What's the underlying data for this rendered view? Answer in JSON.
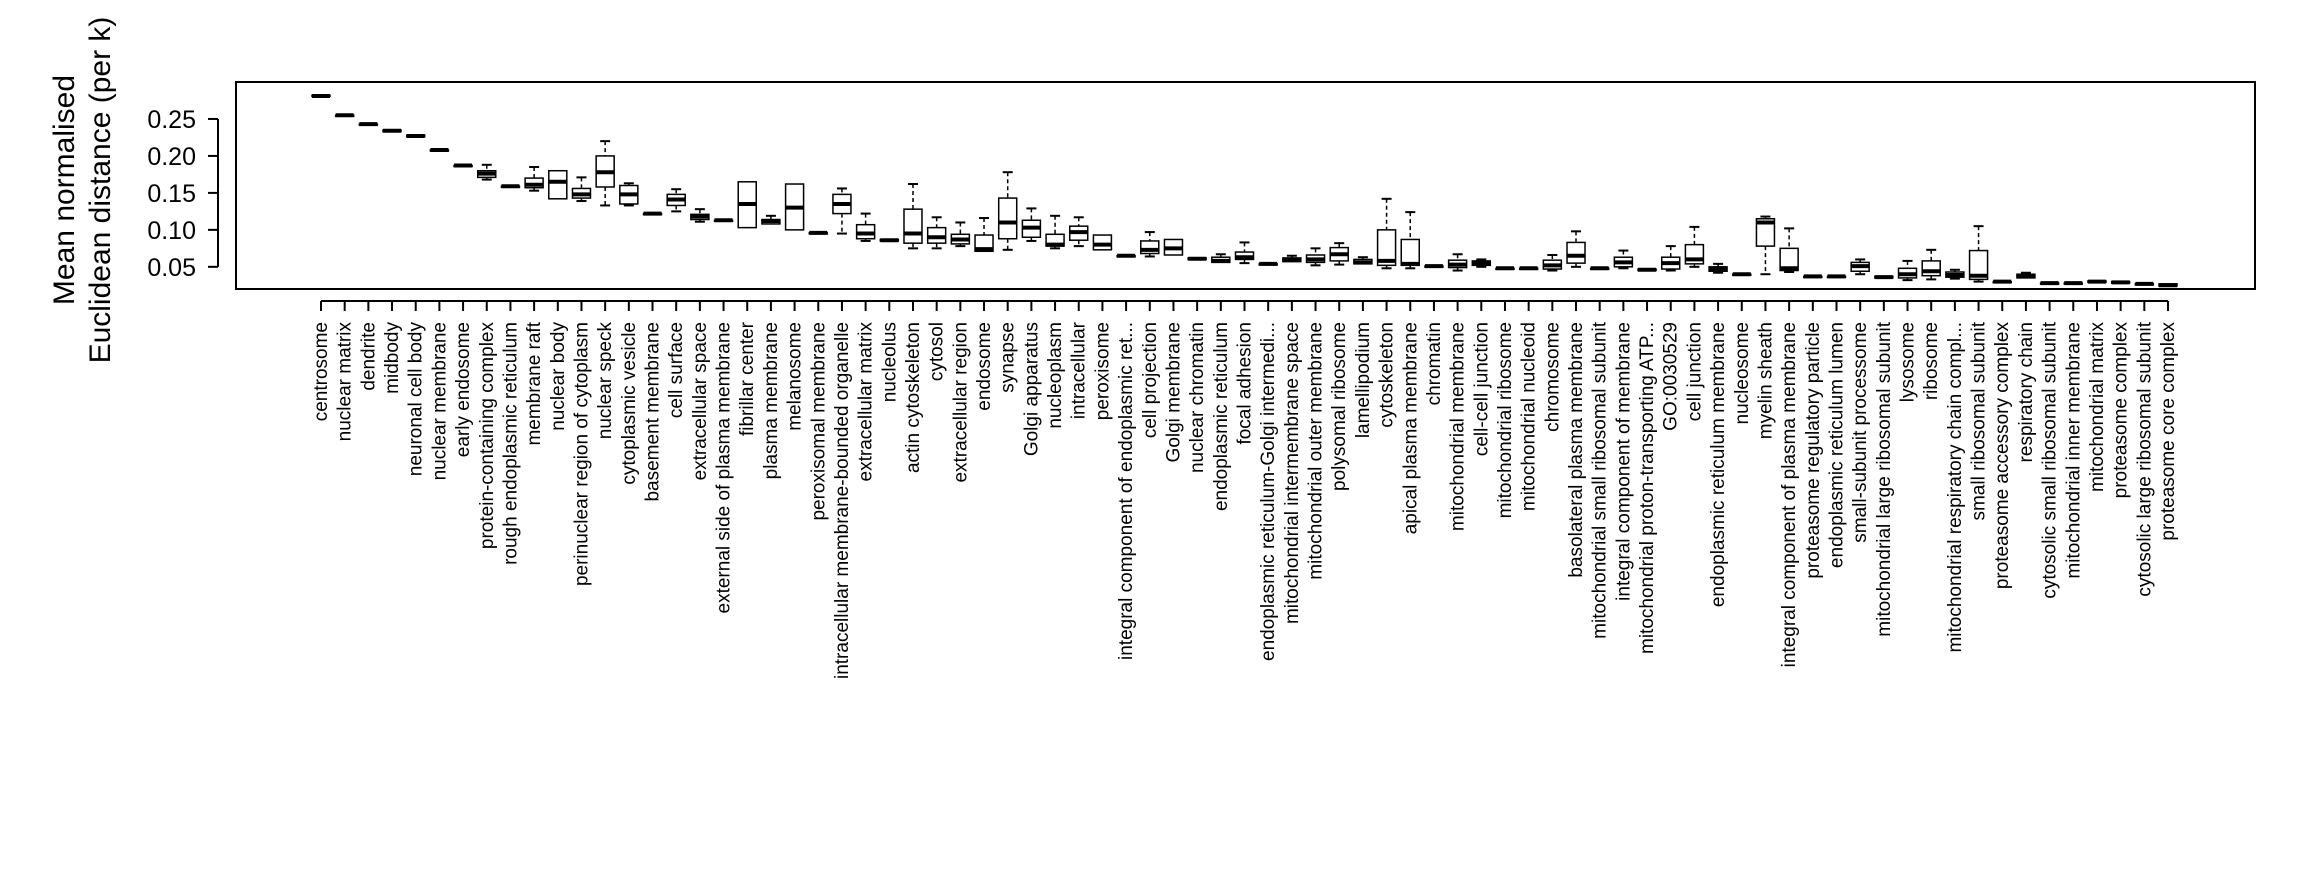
{
  "chart_data": {
    "type": "box",
    "title": "",
    "xlabel": "",
    "ylabel_lines": [
      "Mean normalised",
      "Euclidean distance (per k)"
    ],
    "y_ticks": [
      0.05,
      0.1,
      0.15,
      0.2,
      0.25
    ],
    "y_tick_labels": [
      "0.05",
      "0.10",
      "0.15",
      "0.20",
      "0.25"
    ],
    "ylim": [
      0.02,
      0.3
    ],
    "colors": {
      "stroke": "#000000",
      "fill": "#ffffff"
    },
    "categories": [
      "centrosome",
      "nuclear matrix",
      "dendrite",
      "midbody",
      "neuronal cell body",
      "nuclear membrane",
      "early endosome",
      "protein-containing complex",
      "rough endoplasmic reticulum",
      "membrane raft",
      "nuclear body",
      "perinuclear region of cytoplasm",
      "nuclear speck",
      "cytoplasmic vesicle",
      "basement membrane",
      "cell surface",
      "extracellular space",
      "external side of plasma membrane",
      "fibrillar center",
      "plasma membrane",
      "melanosome",
      "peroxisomal membrane",
      "intracellular membrane-bounded organelle",
      "extracellular matrix",
      "nucleolus",
      "actin cytoskeleton",
      "cytosol",
      "extracellular region",
      "endosome",
      "synapse",
      "Golgi apparatus",
      "nucleoplasm",
      "intracellular",
      "peroxisome",
      "integral component of endoplasmic ret...",
      "cell projection",
      "Golgi membrane",
      "nuclear chromatin",
      "endoplasmic reticulum",
      "focal adhesion",
      "endoplasmic reticulum-Golgi intermedi...",
      "mitochondrial intermembrane space",
      "mitochondrial outer membrane",
      "polysomal ribosome",
      "lamellipodium",
      "cytoskeleton",
      "apical plasma membrane",
      "chromatin",
      "mitochondrial membrane",
      "cell-cell junction",
      "mitochondrial ribosome",
      "mitochondrial nucleoid",
      "chromosome",
      "basolateral plasma membrane",
      "mitochondrial small ribosomal subunit",
      "integral component of membrane",
      "mitochondrial proton-transporting ATP...",
      "GO:0030529",
      "cell junction",
      "endoplasmic reticulum membrane",
      "nucleosome",
      "myelin sheath",
      "integral component of plasma membrane",
      "proteasome regulatory particle",
      "endoplasmic reticulum lumen",
      "small-subunit processome",
      "mitochondrial large ribosomal subunit",
      "lysosome",
      "ribosome",
      "mitochondrial respiratory chain compl...",
      "small ribosomal subunit",
      "proteasome accessory complex",
      "respiratory chain",
      "cytosolic small ribosomal subunit",
      "mitochondrial inner membrane",
      "mitochondrial matrix",
      "proteasome complex",
      "cytosolic large ribosomal subunit",
      "proteasome core complex"
    ],
    "boxes": [
      {
        "min": 0.281,
        "q1": 0.281,
        "median": 0.281,
        "q3": 0.282,
        "max": 0.282
      },
      {
        "min": 0.254,
        "q1": 0.254,
        "median": 0.255,
        "q3": 0.255,
        "max": 0.255
      },
      {
        "min": 0.242,
        "q1": 0.242,
        "median": 0.243,
        "q3": 0.243,
        "max": 0.243
      },
      {
        "min": 0.232,
        "q1": 0.233,
        "median": 0.234,
        "q3": 0.235,
        "max": 0.235
      },
      {
        "min": 0.225,
        "q1": 0.226,
        "median": 0.227,
        "q3": 0.228,
        "max": 0.229
      },
      {
        "min": 0.207,
        "q1": 0.207,
        "median": 0.208,
        "q3": 0.208,
        "max": 0.208
      },
      {
        "min": 0.187,
        "q1": 0.187,
        "median": 0.187,
        "q3": 0.187,
        "max": 0.187
      },
      {
        "min": 0.168,
        "q1": 0.171,
        "median": 0.176,
        "q3": 0.18,
        "max": 0.188
      },
      {
        "min": 0.158,
        "q1": 0.158,
        "median": 0.159,
        "q3": 0.159,
        "max": 0.159
      },
      {
        "min": 0.153,
        "q1": 0.157,
        "median": 0.161,
        "q3": 0.17,
        "max": 0.185
      },
      {
        "min": 0.142,
        "q1": 0.142,
        "median": 0.165,
        "q3": 0.18,
        "max": 0.18
      },
      {
        "min": 0.139,
        "q1": 0.143,
        "median": 0.148,
        "q3": 0.156,
        "max": 0.171
      },
      {
        "min": 0.133,
        "q1": 0.158,
        "median": 0.178,
        "q3": 0.2,
        "max": 0.22
      },
      {
        "min": 0.133,
        "q1": 0.135,
        "median": 0.148,
        "q3": 0.16,
        "max": 0.163
      },
      {
        "min": 0.121,
        "q1": 0.121,
        "median": 0.122,
        "q3": 0.122,
        "max": 0.122
      },
      {
        "min": 0.125,
        "q1": 0.133,
        "median": 0.141,
        "q3": 0.148,
        "max": 0.155
      },
      {
        "min": 0.111,
        "q1": 0.114,
        "median": 0.118,
        "q3": 0.121,
        "max": 0.128
      },
      {
        "min": 0.112,
        "q1": 0.112,
        "median": 0.113,
        "q3": 0.113,
        "max": 0.113
      },
      {
        "min": 0.103,
        "q1": 0.103,
        "median": 0.135,
        "q3": 0.165,
        "max": 0.165
      },
      {
        "min": 0.107,
        "q1": 0.108,
        "median": 0.112,
        "q3": 0.114,
        "max": 0.119
      },
      {
        "min": 0.1,
        "q1": 0.1,
        "median": 0.13,
        "q3": 0.162,
        "max": 0.162
      },
      {
        "min": 0.095,
        "q1": 0.095,
        "median": 0.096,
        "q3": 0.096,
        "max": 0.096
      },
      {
        "min": 0.095,
        "q1": 0.122,
        "median": 0.135,
        "q3": 0.148,
        "max": 0.156
      },
      {
        "min": 0.085,
        "q1": 0.088,
        "median": 0.095,
        "q3": 0.107,
        "max": 0.122
      },
      {
        "min": 0.085,
        "q1": 0.085,
        "median": 0.086,
        "q3": 0.087,
        "max": 0.087
      },
      {
        "min": 0.075,
        "q1": 0.082,
        "median": 0.095,
        "q3": 0.128,
        "max": 0.162
      },
      {
        "min": 0.075,
        "q1": 0.082,
        "median": 0.09,
        "q3": 0.103,
        "max": 0.117
      },
      {
        "min": 0.078,
        "q1": 0.081,
        "median": 0.087,
        "q3": 0.094,
        "max": 0.11
      },
      {
        "min": 0.07,
        "q1": 0.071,
        "median": 0.074,
        "q3": 0.093,
        "max": 0.116
      },
      {
        "min": 0.073,
        "q1": 0.088,
        "median": 0.11,
        "q3": 0.143,
        "max": 0.178
      },
      {
        "min": 0.085,
        "q1": 0.09,
        "median": 0.103,
        "q3": 0.113,
        "max": 0.129
      },
      {
        "min": 0.075,
        "q1": 0.078,
        "median": 0.08,
        "q3": 0.094,
        "max": 0.119
      },
      {
        "min": 0.078,
        "q1": 0.086,
        "median": 0.097,
        "q3": 0.105,
        "max": 0.117
      },
      {
        "min": 0.073,
        "q1": 0.073,
        "median": 0.08,
        "q3": 0.093,
        "max": 0.093
      },
      {
        "min": 0.064,
        "q1": 0.064,
        "median": 0.065,
        "q3": 0.065,
        "max": 0.065
      },
      {
        "min": 0.064,
        "q1": 0.068,
        "median": 0.073,
        "q3": 0.085,
        "max": 0.097
      },
      {
        "min": 0.066,
        "q1": 0.066,
        "median": 0.075,
        "q3": 0.087,
        "max": 0.087
      },
      {
        "min": 0.06,
        "q1": 0.06,
        "median": 0.061,
        "q3": 0.062,
        "max": 0.062
      },
      {
        "min": 0.055,
        "q1": 0.056,
        "median": 0.058,
        "q3": 0.063,
        "max": 0.067
      },
      {
        "min": 0.055,
        "q1": 0.06,
        "median": 0.063,
        "q3": 0.07,
        "max": 0.083
      },
      {
        "min": 0.053,
        "q1": 0.053,
        "median": 0.054,
        "q3": 0.054,
        "max": 0.054
      },
      {
        "min": 0.056,
        "q1": 0.057,
        "median": 0.06,
        "q3": 0.062,
        "max": 0.065
      },
      {
        "min": 0.052,
        "q1": 0.056,
        "median": 0.06,
        "q3": 0.066,
        "max": 0.075
      },
      {
        "min": 0.053,
        "q1": 0.058,
        "median": 0.067,
        "q3": 0.076,
        "max": 0.082
      },
      {
        "min": 0.054,
        "q1": 0.054,
        "median": 0.056,
        "q3": 0.06,
        "max": 0.063
      },
      {
        "min": 0.048,
        "q1": 0.052,
        "median": 0.058,
        "q3": 0.1,
        "max": 0.142
      },
      {
        "min": 0.048,
        "q1": 0.052,
        "median": 0.054,
        "q3": 0.087,
        "max": 0.124
      },
      {
        "min": 0.05,
        "q1": 0.05,
        "median": 0.051,
        "q3": 0.051,
        "max": 0.051
      },
      {
        "min": 0.045,
        "q1": 0.049,
        "median": 0.053,
        "q3": 0.059,
        "max": 0.067
      },
      {
        "min": 0.05,
        "q1": 0.052,
        "median": 0.055,
        "q3": 0.058,
        "max": 0.06
      },
      {
        "min": 0.047,
        "q1": 0.047,
        "median": 0.048,
        "q3": 0.048,
        "max": 0.048
      },
      {
        "min": 0.047,
        "q1": 0.047,
        "median": 0.048,
        "q3": 0.048,
        "max": 0.048
      },
      {
        "min": 0.045,
        "q1": 0.047,
        "median": 0.052,
        "q3": 0.059,
        "max": 0.066
      },
      {
        "min": 0.05,
        "q1": 0.055,
        "median": 0.065,
        "q3": 0.083,
        "max": 0.098
      },
      {
        "min": 0.047,
        "q1": 0.047,
        "median": 0.048,
        "q3": 0.048,
        "max": 0.048
      },
      {
        "min": 0.048,
        "q1": 0.05,
        "median": 0.056,
        "q3": 0.063,
        "max": 0.072
      },
      {
        "min": 0.045,
        "q1": 0.045,
        "median": 0.046,
        "q3": 0.047,
        "max": 0.047
      },
      {
        "min": 0.045,
        "q1": 0.047,
        "median": 0.055,
        "q3": 0.063,
        "max": 0.078
      },
      {
        "min": 0.05,
        "q1": 0.054,
        "median": 0.06,
        "q3": 0.08,
        "max": 0.104
      },
      {
        "min": 0.042,
        "q1": 0.044,
        "median": 0.047,
        "q3": 0.05,
        "max": 0.054
      },
      {
        "min": 0.039,
        "q1": 0.039,
        "median": 0.04,
        "q3": 0.04,
        "max": 0.04
      },
      {
        "min": 0.04,
        "q1": 0.078,
        "median": 0.11,
        "q3": 0.115,
        "max": 0.118
      },
      {
        "min": 0.043,
        "q1": 0.045,
        "median": 0.048,
        "q3": 0.075,
        "max": 0.102
      },
      {
        "min": 0.036,
        "q1": 0.036,
        "median": 0.037,
        "q3": 0.037,
        "max": 0.037
      },
      {
        "min": 0.036,
        "q1": 0.036,
        "median": 0.037,
        "q3": 0.037,
        "max": 0.037
      },
      {
        "min": 0.04,
        "q1": 0.044,
        "median": 0.051,
        "q3": 0.056,
        "max": 0.06
      },
      {
        "min": 0.035,
        "q1": 0.035,
        "median": 0.036,
        "q3": 0.037,
        "max": 0.037
      },
      {
        "min": 0.032,
        "q1": 0.035,
        "median": 0.04,
        "q3": 0.048,
        "max": 0.058
      },
      {
        "min": 0.033,
        "q1": 0.038,
        "median": 0.044,
        "q3": 0.058,
        "max": 0.073
      },
      {
        "min": 0.034,
        "q1": 0.036,
        "median": 0.039,
        "q3": 0.043,
        "max": 0.046
      },
      {
        "min": 0.03,
        "q1": 0.033,
        "median": 0.038,
        "q3": 0.072,
        "max": 0.105
      },
      {
        "min": 0.029,
        "q1": 0.029,
        "median": 0.03,
        "q3": 0.03,
        "max": 0.03
      },
      {
        "min": 0.034,
        "q1": 0.035,
        "median": 0.038,
        "q3": 0.04,
        "max": 0.042
      },
      {
        "min": 0.027,
        "q1": 0.027,
        "median": 0.028,
        "q3": 0.028,
        "max": 0.028
      },
      {
        "min": 0.027,
        "q1": 0.027,
        "median": 0.028,
        "q3": 0.028,
        "max": 0.028
      },
      {
        "min": 0.028,
        "q1": 0.029,
        "median": 0.03,
        "q3": 0.031,
        "max": 0.031
      },
      {
        "min": 0.027,
        "q1": 0.028,
        "median": 0.029,
        "q3": 0.03,
        "max": 0.03
      },
      {
        "min": 0.026,
        "q1": 0.026,
        "median": 0.027,
        "q3": 0.027,
        "max": 0.027
      },
      {
        "min": 0.023,
        "q1": 0.024,
        "median": 0.025,
        "q3": 0.027,
        "max": 0.028
      }
    ]
  }
}
